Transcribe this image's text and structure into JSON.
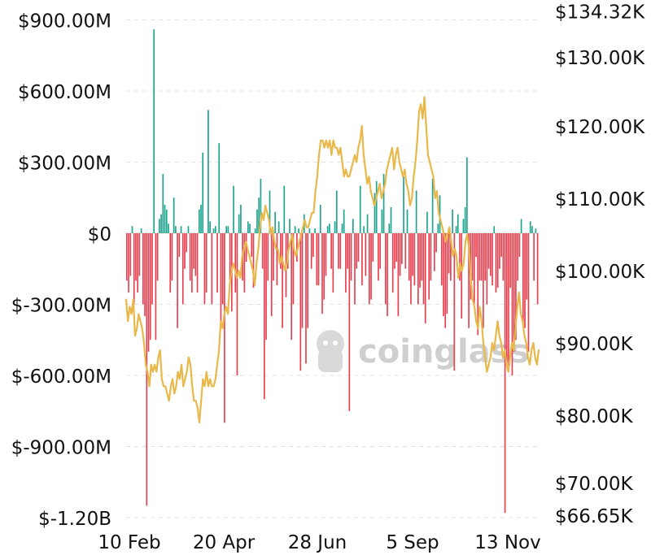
{
  "chart_data": {
    "type": "bar",
    "title": "",
    "xlabel": "",
    "ylabel": "",
    "grid": true,
    "legend": "none",
    "watermark": "coinglass",
    "colors": {
      "inflow": "#1ea38e",
      "outflow": "#e5404f",
      "price": "#e8b84a"
    },
    "x_ticks": [
      "10 Feb",
      "20 Apr",
      "28 Jun",
      "5 Sep",
      "13 Nov"
    ],
    "left_axis": {
      "ticks": [
        {
          "value": 900,
          "label": "$900.00M"
        },
        {
          "value": 600,
          "label": "$600.00M"
        },
        {
          "value": 300,
          "label": "$300.00M"
        },
        {
          "value": 0,
          "label": "$0"
        },
        {
          "value": -300,
          "label": "$-300.00M"
        },
        {
          "value": -600,
          "label": "$-600.00M"
        },
        {
          "value": -900,
          "label": "$-900.00M"
        },
        {
          "value": -1200,
          "label": "$-1.20B"
        }
      ],
      "ylim": [
        -1200,
        1000
      ]
    },
    "right_axis": {
      "ticks": [
        {
          "value": 134.32,
          "label": "$134.32K"
        },
        {
          "value": 130,
          "label": "$130.00K"
        },
        {
          "value": 120,
          "label": "$120.00K"
        },
        {
          "value": 110,
          "label": "$110.00K"
        },
        {
          "value": 100,
          "label": "$100.00K"
        },
        {
          "value": 90,
          "label": "$90.00K"
        },
        {
          "value": 80,
          "label": "$80.00K"
        },
        {
          "value": 70,
          "label": "$70.00K"
        },
        {
          "value": 66.65,
          "label": "$66.65K"
        }
      ]
    },
    "series": [
      {
        "name": "",
        "kind": "bar",
        "values": [
          -200,
          -250,
          -180,
          30,
          -300,
          -200,
          -250,
          -180,
          20,
          -300,
          -350,
          -1150,
          -500,
          -450,
          -300,
          860,
          -450,
          -200,
          60,
          80,
          250,
          120,
          100,
          40,
          -250,
          -200,
          150,
          30,
          -400,
          -100,
          30,
          -300,
          -150,
          -80,
          30,
          -200,
          -250,
          -150,
          -180,
          -250,
          100,
          120,
          340,
          -300,
          -250,
          520,
          50,
          -300,
          20,
          30,
          -250,
          380,
          -400,
          -300,
          -800,
          30,
          30,
          -200,
          -330,
          200,
          -250,
          -600,
          80,
          120,
          -200,
          -250,
          -120,
          50,
          40,
          -100,
          -230,
          20,
          100,
          150,
          230,
          -150,
          -700,
          -450,
          -200,
          180,
          -350,
          -200,
          90,
          -220,
          50,
          -150,
          -400,
          200,
          -270,
          -150,
          60,
          -450,
          -300,
          30,
          -120,
          20,
          -580,
          -400,
          80,
          -550,
          -400,
          20,
          -150,
          -100,
          20,
          -220,
          -220,
          120,
          -340,
          -280,
          -180,
          30,
          40,
          -150,
          -250,
          50,
          180,
          -150,
          -150,
          40,
          100,
          -250,
          -150,
          -750,
          -200,
          60,
          -300,
          -150,
          -120,
          200,
          -220,
          30,
          -180,
          80,
          -300,
          -280,
          -120,
          170,
          220,
          -200,
          -150,
          100,
          250,
          -300,
          -350,
          40,
          110,
          -250,
          -150,
          -120,
          -350,
          -180,
          -130,
          240,
          -150,
          100,
          -200,
          -300,
          -180,
          -220,
          180,
          -300,
          -230,
          -200,
          -300,
          -380,
          90,
          -280,
          -200,
          230,
          -160,
          -80,
          40,
          160,
          -220,
          -350,
          -400,
          -340,
          -170,
          -200,
          100,
          -580,
          30,
          80,
          -200,
          -360,
          60,
          110,
          320,
          -400,
          -280,
          -200,
          -300,
          -100,
          -430,
          -200,
          -200,
          -400,
          -200,
          -300,
          -150,
          -180,
          -220,
          30,
          -250,
          -230,
          -150,
          -100,
          -200,
          -1180,
          -550,
          -560,
          -230,
          -600,
          -500,
          -450,
          -200,
          -100,
          60,
          -380,
          -400,
          -280,
          -500,
          50,
          30,
          -200,
          20,
          -300
        ]
      },
      {
        "name": "",
        "kind": "line",
        "axis": "right",
        "values": [
          96,
          93,
          95,
          94,
          96,
          91,
          92,
          94,
          93,
          92,
          90,
          87,
          86,
          84,
          87,
          86,
          87,
          86,
          88,
          89,
          85,
          84,
          84,
          83,
          82,
          84,
          85,
          83,
          84,
          86,
          85,
          87,
          84,
          85,
          86,
          88,
          87,
          84,
          82,
          82,
          81,
          79,
          82,
          85,
          84,
          86,
          84,
          85,
          84,
          84,
          85,
          87,
          89,
          93,
          92,
          94,
          95,
          94,
          98,
          100,
          101,
          100,
          99,
          100,
          99,
          102,
          103,
          104,
          103,
          102,
          101,
          100,
          98,
          101,
          103,
          106,
          108,
          107,
          109,
          108,
          107,
          105,
          106,
          104,
          103,
          103,
          101,
          102,
          101,
          100,
          101,
          103,
          104,
          105,
          103,
          102,
          103,
          104,
          105,
          106,
          107,
          106,
          106,
          107,
          108,
          108,
          111,
          113,
          116,
          118,
          118,
          117,
          118,
          117,
          118,
          116,
          118,
          117,
          117,
          116,
          117,
          115,
          113,
          114,
          113,
          113,
          114,
          115,
          116,
          115,
          117,
          118,
          120,
          116,
          114,
          112,
          113,
          111,
          110,
          109,
          110,
          111,
          112,
          110,
          111,
          112,
          114,
          115,
          116,
          117,
          114,
          116,
          117,
          115,
          114,
          113,
          114,
          112,
          111,
          109,
          110,
          113,
          115,
          118,
          122,
          123,
          121,
          124,
          120,
          116,
          115,
          114,
          113,
          110,
          111,
          108,
          107,
          106,
          105,
          104,
          105,
          106,
          104,
          102,
          103,
          102,
          99,
          101,
          100,
          101,
          104,
          105,
          103,
          99,
          96,
          95,
          93,
          92,
          95,
          93,
          90,
          88,
          86,
          87,
          88,
          90,
          89,
          91,
          93,
          91,
          90,
          88,
          89,
          87,
          86,
          88,
          90,
          89,
          92,
          95,
          97,
          94,
          93,
          91,
          90,
          88,
          87,
          89,
          90,
          88,
          87,
          89
        ]
      }
    ]
  }
}
